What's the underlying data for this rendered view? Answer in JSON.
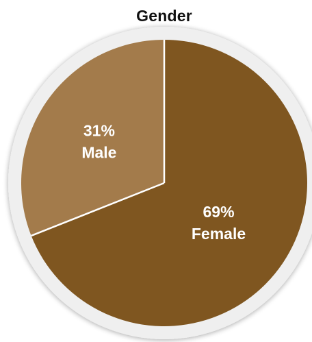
{
  "chart_data": {
    "type": "pie",
    "title": "Gender",
    "slices": [
      {
        "name": "Female",
        "value": 69,
        "percent_label": "69%",
        "color": "#7f5620"
      },
      {
        "name": "Male",
        "value": 31,
        "percent_label": "31%",
        "color": "#a37b4b"
      }
    ],
    "ring_color": "#efefef",
    "separator_color": "#ffffff"
  }
}
